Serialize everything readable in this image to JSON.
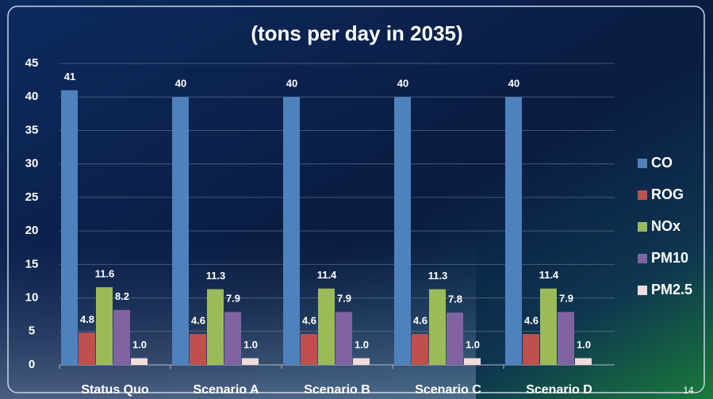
{
  "chart_data": {
    "type": "bar",
    "title": "(tons per day in 2035)",
    "categories": [
      "Status Quo",
      "Scenario A",
      "Scenario B",
      "Scenario C",
      "Scenario D"
    ],
    "series": [
      {
        "name": "CO",
        "color": "#4f81bd",
        "values": [
          41,
          40,
          40,
          40,
          40
        ]
      },
      {
        "name": "ROG",
        "color": "#c0504d",
        "values": [
          4.8,
          4.6,
          4.6,
          4.6,
          4.6
        ]
      },
      {
        "name": "NOx",
        "color": "#9bbb59",
        "values": [
          11.6,
          11.3,
          11.4,
          11.3,
          11.4
        ]
      },
      {
        "name": "PM10",
        "color": "#8064a2",
        "values": [
          8.2,
          7.9,
          7.9,
          7.8,
          7.9
        ]
      },
      {
        "name": "PM2.5",
        "color": "#f2dcdb",
        "values": [
          1,
          1,
          1,
          1,
          1
        ],
        "value_labels": [
          "1.0",
          "1.0",
          "1.0",
          "1.0",
          "1.0"
        ]
      }
    ],
    "ylim": [
      0,
      45
    ],
    "yticks": [
      0,
      5,
      10,
      15,
      20,
      25,
      30,
      35,
      40,
      45
    ],
    "grid": true,
    "legend": "right"
  },
  "slide_number": "14"
}
